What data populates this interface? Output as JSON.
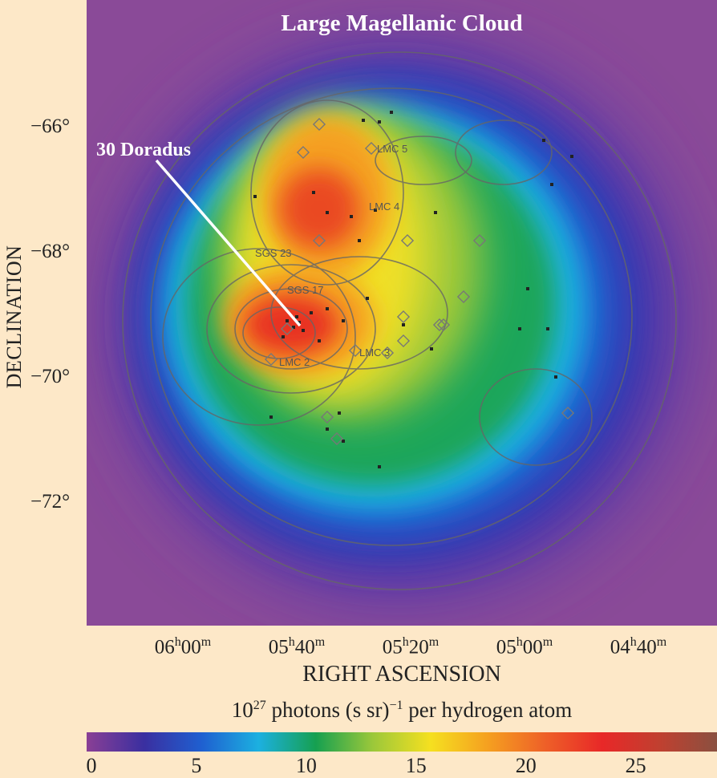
{
  "chart_data": {
    "type": "heatmap",
    "title": "Large Magellanic Cloud",
    "xlabel": "RIGHT ASCENSION",
    "ylabel": "DECLINATION",
    "x_ticks": [
      {
        "h": "06",
        "hs": "h",
        "m": "00",
        "ms": "m",
        "ra_min": 360
      },
      {
        "h": "05",
        "hs": "h",
        "m": "40",
        "ms": "m",
        "ra_min": 340
      },
      {
        "h": "05",
        "hs": "h",
        "m": "20",
        "ms": "m",
        "ra_min": 320
      },
      {
        "h": "05",
        "hs": "h",
        "m": "00",
        "ms": "m",
        "ra_min": 300
      },
      {
        "h": "04",
        "hs": "h",
        "m": "40",
        "ms": "m",
        "ra_min": 280
      }
    ],
    "y_ticks": [
      {
        "label": "−66°",
        "value": -66
      },
      {
        "label": "−68°",
        "value": -68
      },
      {
        "label": "−70°",
        "value": -70
      },
      {
        "label": "−72°",
        "value": -72
      }
    ],
    "colorbar": {
      "label_base": "10",
      "label_exp": "27",
      "label_mid": " photons (s sr)",
      "label_exp2": "−1",
      "label_end": " per hydrogen atom",
      "range": [
        0,
        28.7
      ],
      "ticks": [
        "0",
        "5",
        "10",
        "15",
        "20",
        "25"
      ],
      "tick_values": [
        0,
        5,
        10,
        15,
        20,
        25
      ],
      "colors": [
        "#8a3f95",
        "#3a2fa0",
        "#1f5fd0",
        "#1cb0e0",
        "#16a050",
        "#9cc83a",
        "#f5e020",
        "#f5a020",
        "#ee6028",
        "#e82828",
        "#c04030",
        "#8a5040"
      ]
    },
    "annotations": {
      "doradus": "30 Doradus",
      "regions": [
        "LMC 5",
        "LMC 4",
        "SGS 23",
        "SGS 17",
        "LMC 2",
        "LMC 3"
      ]
    }
  }
}
